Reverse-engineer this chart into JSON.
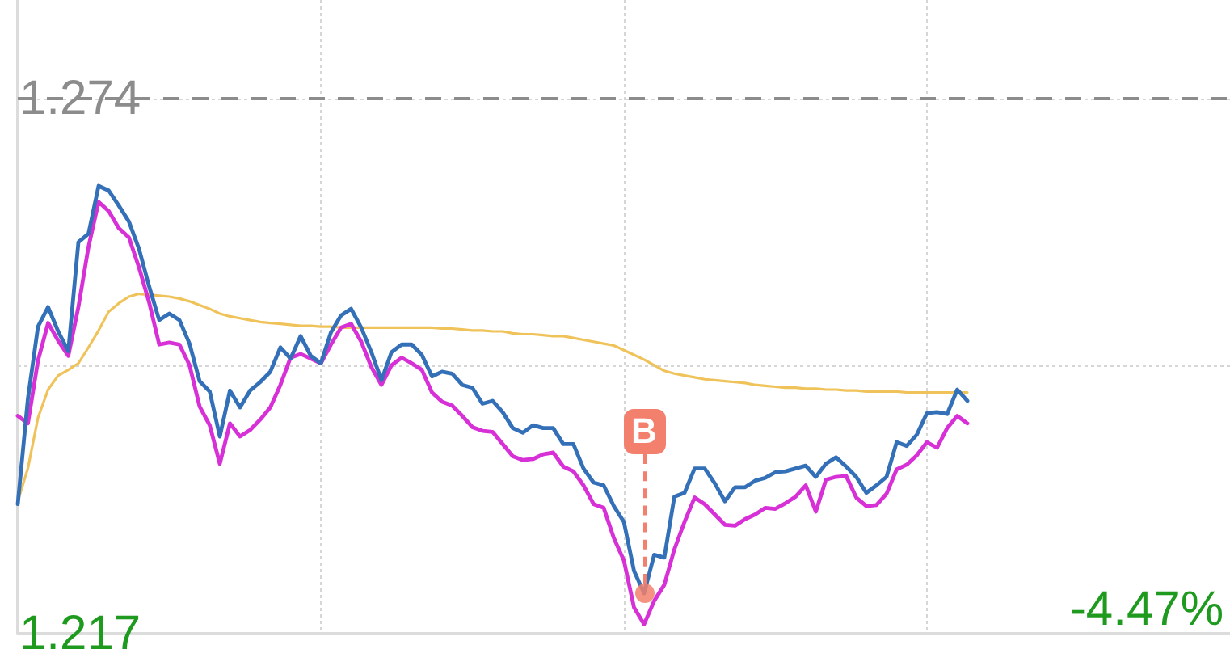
{
  "chart_data": {
    "type": "line",
    "categories": [
      null,
      null,
      null,
      null,
      null,
      null,
      null,
      null,
      null,
      null,
      null,
      null,
      null,
      null,
      null,
      null,
      null,
      null,
      null,
      null,
      null,
      null,
      null,
      null,
      null,
      null,
      null,
      null,
      null,
      null,
      null,
      null,
      null,
      null,
      null,
      null,
      null,
      null,
      null,
      null,
      null,
      null,
      null,
      null,
      null,
      null,
      null,
      null,
      null,
      null,
      null,
      null,
      null,
      null,
      null,
      null,
      null,
      null,
      null,
      null,
      null,
      null,
      null,
      null,
      null,
      null,
      null,
      null,
      null,
      null,
      null,
      null,
      null,
      null,
      null,
      null,
      null,
      null,
      null,
      null,
      null,
      null,
      null,
      null,
      null,
      null,
      null,
      null,
      null,
      null,
      null,
      null,
      null,
      null,
      null,
      null,
      null,
      null,
      null,
      null,
      null,
      null,
      null,
      null,
      null,
      null,
      null,
      null,
      null,
      null,
      null,
      null,
      null,
      null,
      null,
      null,
      null,
      null,
      null,
      null,
      null
    ],
    "ylim": [
      1.217,
      1.2845
    ],
    "yticks": [
      1.217,
      {
        "value": 1.2455,
        "label": null
      },
      1.274
    ],
    "series": [
      {
        "color": "#f0c35a",
        "values": [
          1.2311,
          1.2346,
          1.24,
          1.243,
          1.2445,
          1.2451,
          1.2458,
          1.2475,
          1.2493,
          1.2513,
          1.2522,
          1.2529,
          1.2532,
          1.2531,
          1.253,
          1.2529,
          1.2527,
          1.2524,
          1.252,
          1.2516,
          1.2511,
          1.2508,
          1.2506,
          1.2504,
          1.2502,
          1.2501,
          1.25,
          1.2499,
          1.2498,
          1.2498,
          1.2497,
          1.2497,
          1.2496,
          1.2496,
          1.2496,
          1.2496,
          1.2496,
          1.2496,
          1.2496,
          1.2496,
          1.2496,
          1.2496,
          1.2495,
          1.2495,
          1.2494,
          1.2493,
          1.2493,
          1.2492,
          1.2492,
          1.249,
          1.2489,
          1.2489,
          1.2488,
          1.2487,
          1.2487,
          1.2485,
          1.2483,
          1.2481,
          1.2479,
          1.2477,
          1.2472,
          1.2467,
          1.2462,
          1.2456,
          1.245,
          1.2447,
          1.2445,
          1.2443,
          1.2441,
          1.244,
          1.2439,
          1.2438,
          1.2437,
          1.2435,
          1.2434,
          1.2433,
          1.2432,
          1.2432,
          1.2431,
          1.2431,
          1.243,
          1.243,
          1.2429,
          1.2429,
          1.2428,
          1.2428,
          1.2428,
          1.2428,
          1.2427,
          1.2427,
          1.2427,
          1.2427,
          1.2427,
          1.2427,
          1.2427,
          null,
          null,
          null,
          null,
          null,
          null,
          null,
          null,
          null,
          null,
          null,
          null,
          null,
          null,
          null,
          null,
          null,
          null,
          null,
          null,
          null,
          null,
          null,
          null,
          null,
          null
        ]
      },
      {
        "color": "#d630d6",
        "values": [
          1.2402,
          1.2394,
          1.2461,
          1.2501,
          1.2482,
          1.2466,
          1.2518,
          1.2582,
          1.263,
          1.262,
          1.2602,
          1.2592,
          1.256,
          1.2523,
          1.2478,
          1.248,
          1.2478,
          1.2456,
          1.2412,
          1.2392,
          1.2351,
          1.2394,
          1.238,
          1.2387,
          1.2398,
          1.2411,
          1.2435,
          1.2464,
          1.2468,
          1.2463,
          1.2458,
          1.2478,
          1.2496,
          1.25,
          1.2481,
          1.2454,
          1.2435,
          1.2456,
          1.2464,
          1.2458,
          1.2451,
          1.2427,
          1.2417,
          1.2413,
          1.2402,
          1.239,
          1.2386,
          1.2385,
          1.2372,
          1.2359,
          1.2355,
          1.2356,
          1.2361,
          1.2363,
          1.2348,
          1.2343,
          1.2328,
          1.2308,
          1.2304,
          1.2272,
          1.2248,
          1.2198,
          1.218,
          1.2205,
          1.2222,
          1.226,
          1.2289,
          1.2315,
          1.2308,
          1.2297,
          1.2286,
          1.2285,
          1.2292,
          1.2297,
          1.2304,
          1.2303,
          1.2309,
          1.2316,
          1.2328,
          1.23,
          1.2334,
          1.2337,
          1.2338,
          1.2315,
          1.2306,
          1.2307,
          1.2319,
          1.2345,
          1.235,
          1.236,
          1.2374,
          1.2368,
          1.2389,
          1.2402,
          1.2394,
          null,
          null,
          null,
          null,
          null,
          null,
          null,
          null,
          null,
          null,
          null,
          null,
          null,
          null,
          null,
          null,
          null,
          null,
          null,
          null,
          null,
          null,
          null,
          null,
          null,
          null
        ]
      },
      {
        "color": "#3470b8",
        "values": [
          1.2308,
          1.242,
          1.2497,
          1.2518,
          1.2492,
          1.2471,
          1.2587,
          1.2596,
          1.2647,
          1.2642,
          1.2626,
          1.2609,
          1.258,
          1.254,
          1.2504,
          1.2511,
          1.2504,
          1.2479,
          1.2439,
          1.2428,
          1.238,
          1.2429,
          1.2411,
          1.2429,
          1.2438,
          1.2449,
          1.2475,
          1.2463,
          1.2487,
          1.2466,
          1.2458,
          1.2491,
          1.2509,
          1.2516,
          1.2496,
          1.247,
          1.244,
          1.247,
          1.2478,
          1.2478,
          1.2467,
          1.2444,
          1.2449,
          1.2447,
          1.2435,
          1.2432,
          1.2415,
          1.2418,
          1.2406,
          1.2389,
          1.2384,
          1.2392,
          1.2389,
          1.2389,
          1.2372,
          1.2372,
          1.2346,
          1.2331,
          1.2328,
          1.2306,
          1.2289,
          1.2237,
          1.2213,
          1.2254,
          1.2251,
          1.2316,
          1.232,
          1.2346,
          1.2346,
          1.233,
          1.2311,
          1.2326,
          1.2326,
          1.2333,
          1.2336,
          1.2342,
          1.2343,
          1.2346,
          1.2349,
          1.2337,
          1.2351,
          1.2358,
          1.2348,
          1.2337,
          1.232,
          1.2328,
          1.2337,
          1.2374,
          1.237,
          1.2382,
          1.2405,
          1.2406,
          1.2404,
          1.243,
          1.2418,
          null,
          null,
          null,
          null,
          null,
          null,
          null,
          null,
          null,
          null,
          null,
          null,
          null,
          null,
          null,
          null,
          null,
          null,
          null,
          null,
          null,
          null,
          null,
          null,
          null,
          null
        ]
      }
    ],
    "ref_lines": [
      {
        "axis": "y",
        "value": 1.274,
        "color": "#8c8c8c",
        "line_style": "dashed"
      }
    ],
    "annotations": [
      "-4.47%",
      {
        "text": "B",
        "y": 1.2213
      }
    ],
    "grid": true,
    "tick_labels": "y",
    "marker": "none",
    "line_style": "solid"
  }
}
